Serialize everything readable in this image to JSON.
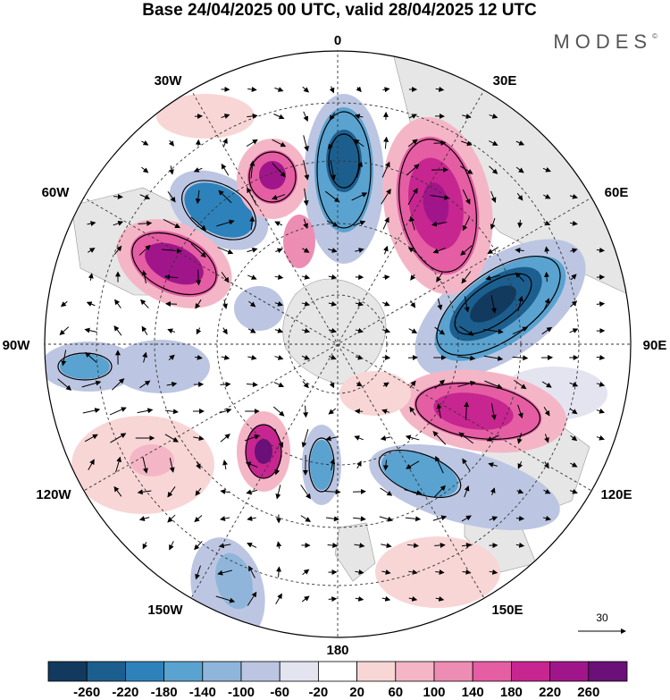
{
  "header": {
    "title": "Base 24/04/2025 00 UTC, valid 28/04/2025 12 UTC",
    "brand": "MODES",
    "brand_mark": "©"
  },
  "map": {
    "projection": "south-polar-stereographic",
    "longitude_labels": {
      "top": "0",
      "top_right": "30E",
      "upper_right": "60E",
      "right": "90E",
      "lower_right": "120E",
      "bottom_right": "150E",
      "bottom": "180",
      "bottom_left": "150W",
      "lower_left": "120W",
      "left": "90W",
      "upper_left": "60W",
      "top_left": "30W"
    },
    "vector_reference": {
      "label": "30"
    }
  },
  "colorbar": {
    "colors": [
      "#113a5e",
      "#1c5f8f",
      "#2e82bb",
      "#5aa3d0",
      "#8fb6da",
      "#bcc6e2",
      "#e3e4f0",
      "#ffffff",
      "#f8d6d6",
      "#f4b6c6",
      "#ee8db4",
      "#e55ea3",
      "#c72590",
      "#a0168a",
      "#6a1078"
    ],
    "labels": [
      "-260",
      "-220",
      "-180",
      "-140",
      "-100",
      "-60",
      "-20",
      "20",
      "60",
      "100",
      "140",
      "180",
      "220",
      "260"
    ]
  }
}
